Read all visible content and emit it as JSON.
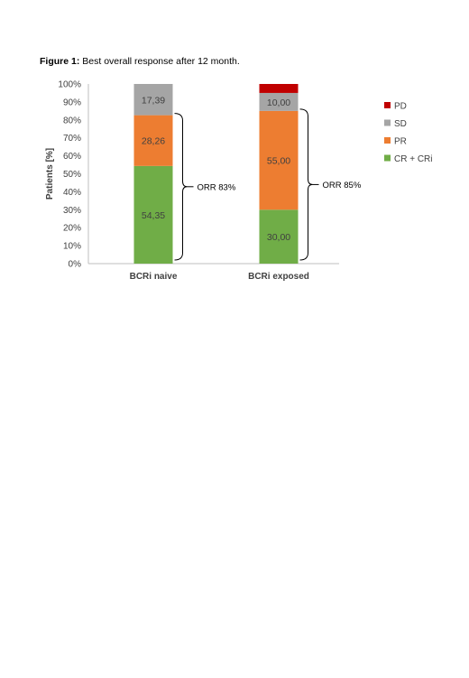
{
  "caption": {
    "lead": "Figure 1:",
    "text": " Best overall response after 12 month."
  },
  "chart_data": {
    "type": "bar",
    "stacked": true,
    "title": "",
    "xlabel": "",
    "ylabel": "Patients [%]",
    "ylim": [
      0,
      100
    ],
    "yticks": [
      "0%",
      "10%",
      "20%",
      "30%",
      "40%",
      "50%",
      "60%",
      "70%",
      "80%",
      "90%",
      "100%"
    ],
    "categories": [
      "BCRi naive",
      "BCRi exposed"
    ],
    "series": [
      {
        "name": "CR + CRi",
        "color": "#70ad47",
        "values": [
          54.35,
          30.0
        ],
        "labels": [
          "54,35",
          "30,00"
        ]
      },
      {
        "name": "PR",
        "color": "#ed7d31",
        "values": [
          28.26,
          55.0
        ],
        "labels": [
          "28,26",
          "55,00"
        ]
      },
      {
        "name": "SD",
        "color": "#a5a5a5",
        "values": [
          17.39,
          10.0
        ],
        "labels": [
          "17,39",
          "10,00"
        ]
      },
      {
        "name": "PD",
        "color": "#c00000",
        "values": [
          0,
          5.0
        ],
        "labels": [
          "",
          ""
        ]
      }
    ],
    "legend_order": [
      "PD",
      "SD",
      "PR",
      "CR + CRi"
    ],
    "legend": "right",
    "grid": false,
    "annotations": [
      {
        "category": "BCRi naive",
        "text": "ORR 83%"
      },
      {
        "category": "BCRi exposed",
        "text": "ORR 85%"
      }
    ]
  }
}
